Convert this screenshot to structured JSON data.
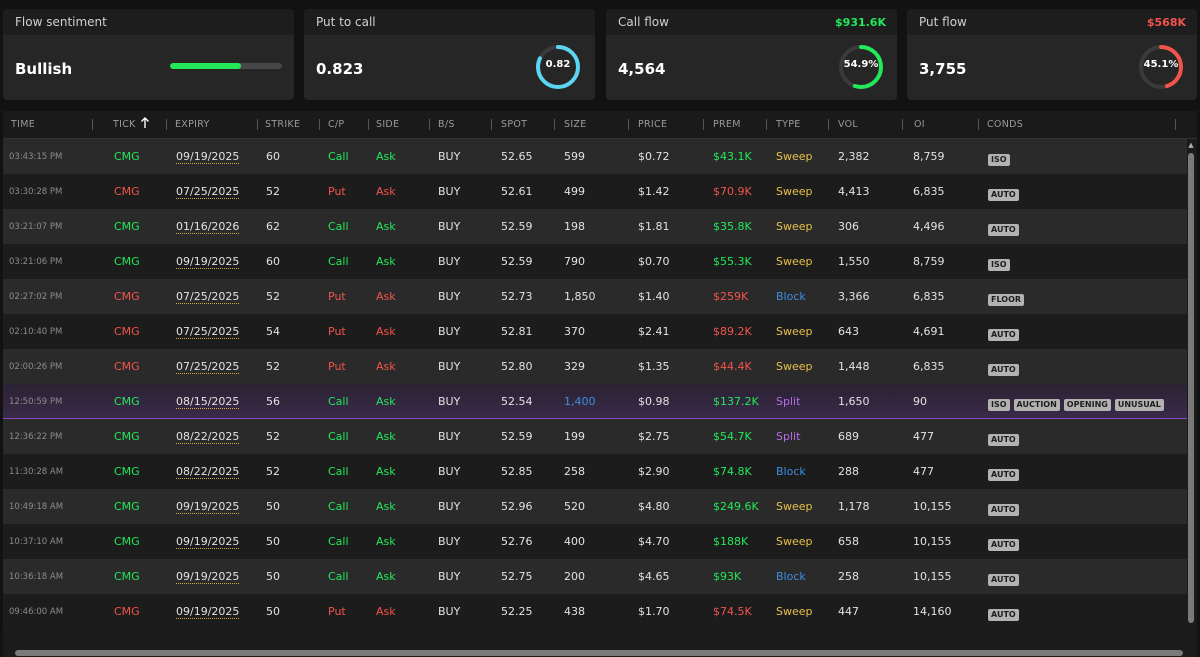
{
  "colors": {
    "green": "#22e85a",
    "red": "#f2544b",
    "yellow": "#e8c14a",
    "blue": "#3b8fe0",
    "purple": "#b56ce8",
    "cyan": "#5bd6f2"
  },
  "cards": {
    "sentiment": {
      "title": "Flow sentiment",
      "value": "Bullish",
      "level": 0.63
    },
    "put_to_call": {
      "title": "Put to call",
      "value": "0.823",
      "gauge_label": "0.82",
      "gauge_fraction": 0.82
    },
    "call_flow": {
      "title": "Call flow",
      "premium": "$931.6K",
      "value": "4,564",
      "gauge_label": "54.9%",
      "gauge_fraction": 0.549
    },
    "put_flow": {
      "title": "Put flow",
      "premium": "$568K",
      "value": "3,755",
      "gauge_label": "45.1%",
      "gauge_fraction": 0.451
    }
  },
  "table": {
    "headers": {
      "time": "TIME",
      "tick": "TICK",
      "sort_icon": "arrow-up-icon",
      "expiry": "EXPIRY",
      "strike": "STRIKE",
      "cp": "C/P",
      "side": "SIDE",
      "bs": "B/S",
      "spot": "SPOT",
      "size": "SIZE",
      "price": "PRICE",
      "prem": "PREM",
      "type": "TYPE",
      "vol": "VOL",
      "oi": "OI",
      "conds": "CONDS"
    },
    "rows": [
      {
        "time": "03:43:15 PM",
        "tick": "CMG",
        "expiry": "09/19/2025",
        "strike": "60",
        "cp": "Call",
        "side": "Ask",
        "bs": "BUY",
        "spot": "52.65",
        "size": "599",
        "price": "$0.72",
        "prem": "$43.1K",
        "type": "Sweep",
        "vol": "2,382",
        "oi": "8,759",
        "conds": [
          "ISO"
        ]
      },
      {
        "time": "03:30:28 PM",
        "tick": "CMG",
        "expiry": "07/25/2025",
        "strike": "52",
        "cp": "Put",
        "side": "Ask",
        "bs": "BUY",
        "spot": "52.61",
        "size": "499",
        "price": "$1.42",
        "prem": "$70.9K",
        "type": "Sweep",
        "vol": "4,413",
        "oi": "6,835",
        "conds": [
          "AUTO"
        ]
      },
      {
        "time": "03:21:07 PM",
        "tick": "CMG",
        "expiry": "01/16/2026",
        "strike": "62",
        "cp": "Call",
        "side": "Ask",
        "bs": "BUY",
        "spot": "52.59",
        "size": "198",
        "price": "$1.81",
        "prem": "$35.8K",
        "type": "Sweep",
        "vol": "306",
        "oi": "4,496",
        "conds": [
          "AUTO"
        ]
      },
      {
        "time": "03:21:06 PM",
        "tick": "CMG",
        "expiry": "09/19/2025",
        "strike": "60",
        "cp": "Call",
        "side": "Ask",
        "bs": "BUY",
        "spot": "52.59",
        "size": "790",
        "price": "$0.70",
        "prem": "$55.3K",
        "type": "Sweep",
        "vol": "1,550",
        "oi": "8,759",
        "conds": [
          "ISO"
        ]
      },
      {
        "time": "02:27:02 PM",
        "tick": "CMG",
        "expiry": "07/25/2025",
        "strike": "52",
        "cp": "Put",
        "side": "Ask",
        "bs": "BUY",
        "spot": "52.73",
        "size": "1,850",
        "price": "$1.40",
        "prem": "$259K",
        "type": "Block",
        "vol": "3,366",
        "oi": "6,835",
        "conds": [
          "FLOOR"
        ]
      },
      {
        "time": "02:10:40 PM",
        "tick": "CMG",
        "expiry": "07/25/2025",
        "strike": "54",
        "cp": "Put",
        "side": "Ask",
        "bs": "BUY",
        "spot": "52.81",
        "size": "370",
        "price": "$2.41",
        "prem": "$89.2K",
        "type": "Sweep",
        "vol": "643",
        "oi": "4,691",
        "conds": [
          "AUTO"
        ]
      },
      {
        "time": "02:00:26 PM",
        "tick": "CMG",
        "expiry": "07/25/2025",
        "strike": "52",
        "cp": "Put",
        "side": "Ask",
        "bs": "BUY",
        "spot": "52.80",
        "size": "329",
        "price": "$1.35",
        "prem": "$44.4K",
        "type": "Sweep",
        "vol": "1,448",
        "oi": "6,835",
        "conds": [
          "AUTO"
        ]
      },
      {
        "time": "12:50:59 PM",
        "tick": "CMG",
        "expiry": "08/15/2025",
        "strike": "56",
        "cp": "Call",
        "side": "Ask",
        "bs": "BUY",
        "spot": "52.54",
        "size": "1,400",
        "price": "$0.98",
        "prem": "$137.2K",
        "type": "Split",
        "vol": "1,650",
        "oi": "90",
        "conds": [
          "ISO",
          "AUCTION",
          "OPENING",
          "UNUSUAL"
        ],
        "highlight": true,
        "size_highlight": true
      },
      {
        "time": "12:36:22 PM",
        "tick": "CMG",
        "expiry": "08/22/2025",
        "strike": "52",
        "cp": "Call",
        "side": "Ask",
        "bs": "BUY",
        "spot": "52.59",
        "size": "199",
        "price": "$2.75",
        "prem": "$54.7K",
        "type": "Split",
        "vol": "689",
        "oi": "477",
        "conds": [
          "AUTO"
        ]
      },
      {
        "time": "11:30:28 AM",
        "tick": "CMG",
        "expiry": "08/22/2025",
        "strike": "52",
        "cp": "Call",
        "side": "Ask",
        "bs": "BUY",
        "spot": "52.85",
        "size": "258",
        "price": "$2.90",
        "prem": "$74.8K",
        "type": "Block",
        "vol": "288",
        "oi": "477",
        "conds": [
          "AUTO"
        ]
      },
      {
        "time": "10:49:18 AM",
        "tick": "CMG",
        "expiry": "09/19/2025",
        "strike": "50",
        "cp": "Call",
        "side": "Ask",
        "bs": "BUY",
        "spot": "52.96",
        "size": "520",
        "price": "$4.80",
        "prem": "$249.6K",
        "type": "Sweep",
        "vol": "1,178",
        "oi": "10,155",
        "conds": [
          "AUTO"
        ]
      },
      {
        "time": "10:37:10 AM",
        "tick": "CMG",
        "expiry": "09/19/2025",
        "strike": "50",
        "cp": "Call",
        "side": "Ask",
        "bs": "BUY",
        "spot": "52.76",
        "size": "400",
        "price": "$4.70",
        "prem": "$188K",
        "type": "Sweep",
        "vol": "658",
        "oi": "10,155",
        "conds": [
          "AUTO"
        ]
      },
      {
        "time": "10:36:18 AM",
        "tick": "CMG",
        "expiry": "09/19/2025",
        "strike": "50",
        "cp": "Call",
        "side": "Ask",
        "bs": "BUY",
        "spot": "52.75",
        "size": "200",
        "price": "$4.65",
        "prem": "$93K",
        "type": "Block",
        "vol": "258",
        "oi": "10,155",
        "conds": [
          "AUTO"
        ]
      },
      {
        "time": "09:46:00 AM",
        "tick": "CMG",
        "expiry": "09/19/2025",
        "strike": "50",
        "cp": "Put",
        "side": "Ask",
        "bs": "BUY",
        "spot": "52.25",
        "size": "438",
        "price": "$1.70",
        "prem": "$74.5K",
        "type": "Sweep",
        "vol": "447",
        "oi": "14,160",
        "conds": [
          "AUTO"
        ]
      }
    ]
  }
}
